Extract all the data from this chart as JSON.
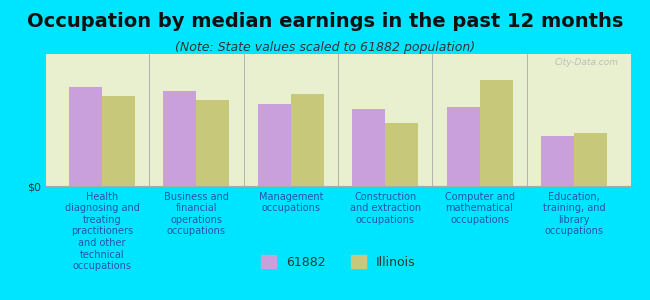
{
  "title": "Occupation by median earnings in the past 12 months",
  "subtitle": "(Note: State values scaled to 61882 population)",
  "categories": [
    "Health\ndiagnosing and\ntreating\npractitioners\nand other\ntechnical\noccupations",
    "Business and\nfinancial\noperations\noccupations",
    "Management\noccupations",
    "Construction\nand extraction\noccupations",
    "Computer and\nmathematical\noccupations",
    "Education,\ntraining, and\nlibrary\noccupations"
  ],
  "values_61882": [
    75,
    72,
    62,
    58,
    60,
    38
  ],
  "values_illinois": [
    68,
    65,
    70,
    48,
    80,
    40
  ],
  "color_61882": "#c9a0dc",
  "color_illinois": "#c8c87a",
  "bar_width": 0.35,
  "background_color": "#e8f0d0",
  "outer_background": "#00e5ff",
  "ylabel": "$0",
  "ylim": [
    0,
    100
  ],
  "legend_label_1": "61882",
  "legend_label_2": "Illinois",
  "title_fontsize": 14,
  "subtitle_fontsize": 9,
  "tick_label_fontsize": 7,
  "watermark": "City-Data.com"
}
